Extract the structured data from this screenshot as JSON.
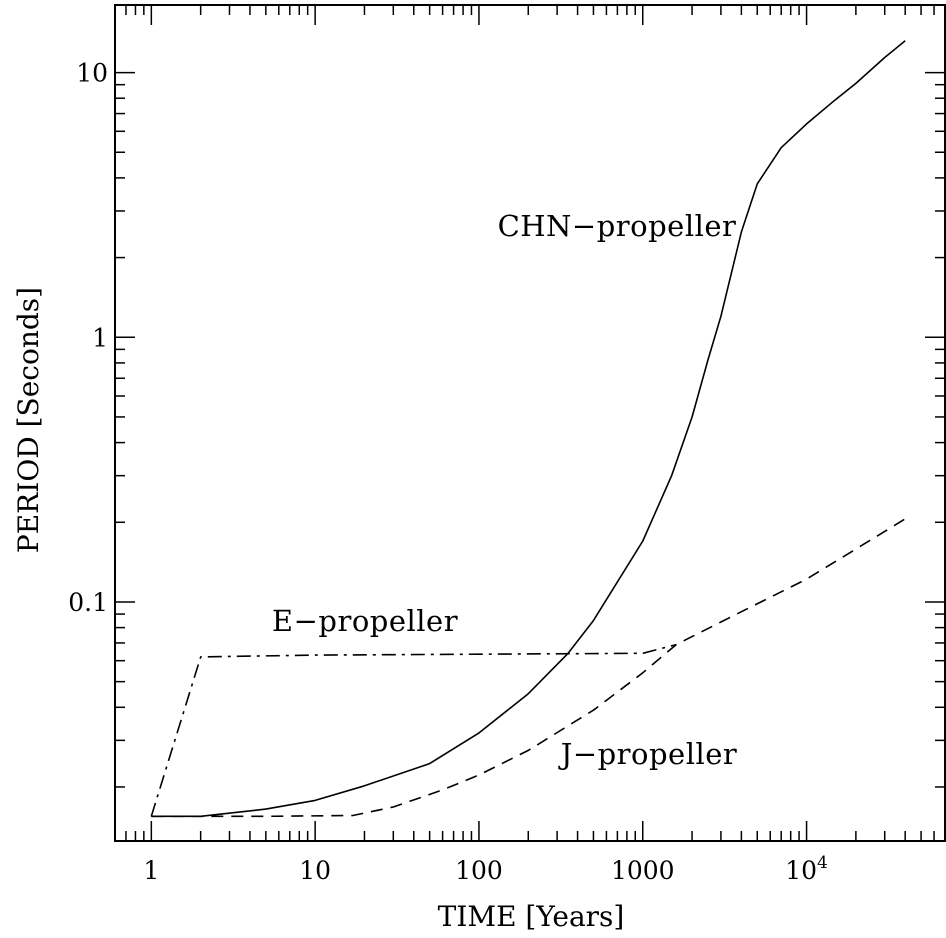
{
  "chart_data": {
    "type": "line",
    "xlabel": "TIME [Years]",
    "ylabel": "PERIOD [Seconds]",
    "x_scale": "log",
    "y_scale": "log",
    "xlim": [
      0.6,
      70000
    ],
    "ylim": [
      0.0125,
      18
    ],
    "x_ticks": [
      {
        "value": 1,
        "label": "1"
      },
      {
        "value": 10,
        "label": "10"
      },
      {
        "value": 100,
        "label": "100"
      },
      {
        "value": 1000,
        "label": "1000"
      },
      {
        "value": 10000,
        "label": "10",
        "exponent": "4"
      }
    ],
    "y_ticks": [
      {
        "value": 0.1,
        "label": "0.1"
      },
      {
        "value": 1,
        "label": "1"
      },
      {
        "value": 10,
        "label": "10"
      }
    ],
    "grid": false,
    "legend": "none",
    "series": [
      {
        "name": "CHN−propeller",
        "style": "solid",
        "color": "#000000",
        "x": [
          1,
          2,
          5,
          10,
          20,
          50,
          100,
          200,
          350,
          500,
          1000,
          1500,
          2000,
          2500,
          3000,
          4000,
          5000,
          7000,
          10000,
          15000,
          20000,
          30000,
          40000
        ],
        "y": [
          0.0155,
          0.0155,
          0.0165,
          0.0178,
          0.0202,
          0.0245,
          0.032,
          0.045,
          0.064,
          0.085,
          0.17,
          0.3,
          0.5,
          0.82,
          1.2,
          2.5,
          3.8,
          5.2,
          6.4,
          7.9,
          9.1,
          11.4,
          13.2
        ]
      },
      {
        "name": "J−propeller",
        "style": "dashed",
        "color": "#000000",
        "x": [
          1,
          5,
          17,
          30,
          60,
          100,
          200,
          500,
          1000,
          1600,
          3000,
          10000,
          40000
        ],
        "y": [
          0.0155,
          0.0155,
          0.0156,
          0.0168,
          0.0195,
          0.0222,
          0.0275,
          0.039,
          0.054,
          0.069,
          0.084,
          0.122,
          0.206
        ]
      },
      {
        "name": "E−propeller",
        "style": "dash-dot",
        "color": "#000000",
        "x": [
          1,
          2,
          10,
          100,
          1000,
          1600
        ],
        "y": [
          0.0155,
          0.062,
          0.063,
          0.0635,
          0.064,
          0.069
        ]
      }
    ]
  }
}
